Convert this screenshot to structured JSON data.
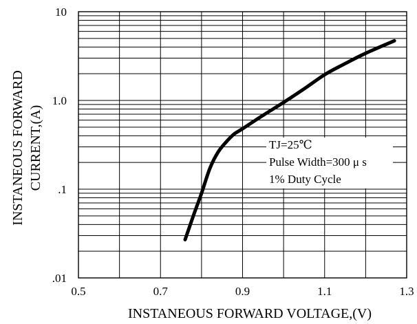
{
  "chart_data": {
    "type": "line",
    "xscale": "linear",
    "yscale": "log",
    "xlim": [
      0.5,
      1.3
    ],
    "ylim": [
      0.01,
      10
    ],
    "grid": true,
    "x_ticks": [
      {
        "value": 0.5,
        "label": "0.5"
      },
      {
        "value": 0.7,
        "label": "0.7"
      },
      {
        "value": 0.9,
        "label": "0.9"
      },
      {
        "value": 1.1,
        "label": "1.1"
      },
      {
        "value": 1.3,
        "label": "1.3"
      }
    ],
    "y_ticks": [
      {
        "value": 10,
        "label": "10"
      },
      {
        "value": 1.0,
        "label": "1.0"
      },
      {
        "value": 0.1,
        "label": ".1"
      },
      {
        "value": 0.01,
        "label": ".01"
      }
    ],
    "xlabel": "INSTANEOUS FORWARD VOLTAGE,(V)",
    "ylabel_lines": [
      "INSTANEOUS FORWARD",
      "CURRENT,(A)"
    ],
    "annotation": {
      "lines": [
        "TJ=25℃",
        "Pulse Width=300 μ s",
        "1% Duty Cycle"
      ]
    },
    "series": [
      {
        "color": "#000000",
        "x": [
          0.76,
          0.78,
          0.8,
          0.82,
          0.84,
          0.86,
          0.88,
          0.9,
          0.95,
          1.0,
          1.05,
          1.1,
          1.15,
          1.2,
          1.27
        ],
        "y": [
          0.027,
          0.05,
          0.09,
          0.17,
          0.26,
          0.34,
          0.42,
          0.48,
          0.68,
          0.95,
          1.35,
          1.95,
          2.6,
          3.4,
          4.7
        ]
      }
    ]
  }
}
